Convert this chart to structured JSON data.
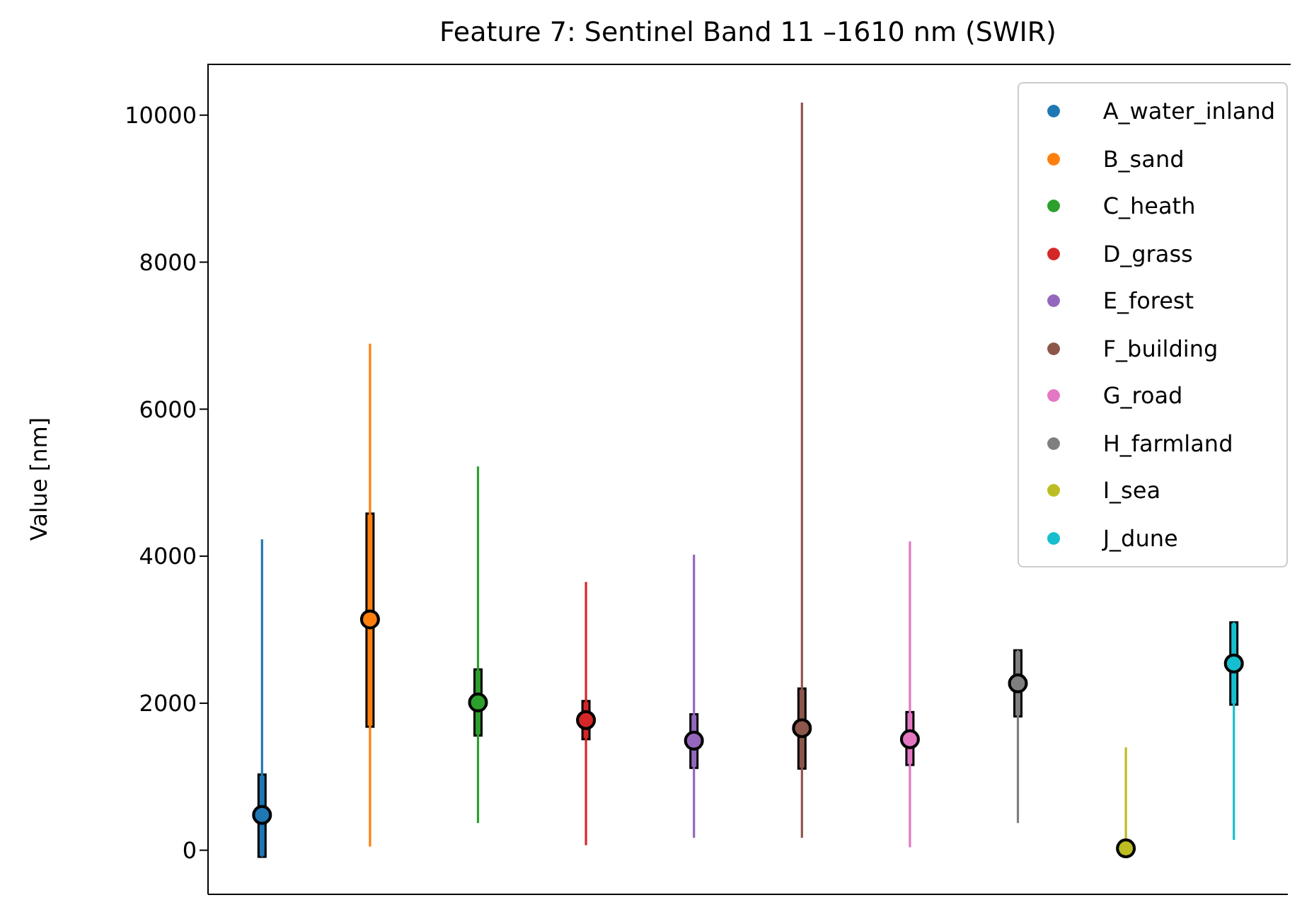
{
  "chart_data": {
    "type": "box",
    "title": "Feature 7: Sentinel Band 11 –1610 nm (SWIR)",
    "ylabel": "Value [nm]",
    "categories": [
      null,
      null,
      null,
      null,
      null,
      null,
      null,
      null,
      null,
      null
    ],
    "ylim": [
      -600,
      10700
    ],
    "yticks": [
      0,
      2000,
      4000,
      6000,
      8000,
      10000
    ],
    "grid": false,
    "legend": "top right",
    "tick_labels": "y",
    "marker": "circle",
    "series": [
      {
        "name": "A_water_inland",
        "color": "#1f77b4",
        "boxes": [
          {
            "low": -90,
            "q1": -90,
            "median": 480,
            "q3": 1030,
            "high": 4230
          },
          null,
          null,
          null,
          null,
          null,
          null,
          null,
          null,
          null
        ]
      },
      {
        "name": "B_sand",
        "color": "#ff7f0e",
        "boxes": [
          null,
          {
            "low": 50,
            "q1": 1680,
            "median": 3140,
            "q3": 4580,
            "high": 6890
          },
          null,
          null,
          null,
          null,
          null,
          null,
          null,
          null
        ]
      },
      {
        "name": "C_heath",
        "color": "#2ca02c",
        "boxes": [
          null,
          null,
          {
            "low": 370,
            "q1": 1560,
            "median": 2010,
            "q3": 2460,
            "high": 5220
          },
          null,
          null,
          null,
          null,
          null,
          null,
          null
        ]
      },
      {
        "name": "D_grass",
        "color": "#d62728",
        "boxes": [
          null,
          null,
          null,
          {
            "low": 70,
            "q1": 1510,
            "median": 1770,
            "q3": 2030,
            "high": 3650
          },
          null,
          null,
          null,
          null,
          null,
          null
        ]
      },
      {
        "name": "E_forest",
        "color": "#9467bd",
        "boxes": [
          null,
          null,
          null,
          null,
          {
            "low": 170,
            "q1": 1120,
            "median": 1490,
            "q3": 1850,
            "high": 4020
          },
          null,
          null,
          null,
          null,
          null
        ]
      },
      {
        "name": "F_building",
        "color": "#8c564b",
        "boxes": [
          null,
          null,
          null,
          null,
          null,
          {
            "low": 170,
            "q1": 1110,
            "median": 1660,
            "q3": 2200,
            "high": 10170
          },
          null,
          null,
          null,
          null
        ]
      },
      {
        "name": "G_road",
        "color": "#e377c2",
        "boxes": [
          null,
          null,
          null,
          null,
          null,
          null,
          {
            "low": 40,
            "q1": 1160,
            "median": 1510,
            "q3": 1880,
            "high": 4200
          },
          null,
          null,
          null
        ]
      },
      {
        "name": "H_farmland",
        "color": "#7f7f7f",
        "boxes": [
          null,
          null,
          null,
          null,
          null,
          null,
          null,
          {
            "low": 370,
            "q1": 1820,
            "median": 2270,
            "q3": 2720,
            "high": null
          },
          null,
          null
        ]
      },
      {
        "name": "I_sea",
        "color": "#bcbd22",
        "boxes": [
          null,
          null,
          null,
          null,
          null,
          null,
          null,
          null,
          {
            "low": -60,
            "q1": -60,
            "median": 25,
            "q3": 110,
            "high": 1400
          },
          null
        ]
      },
      {
        "name": "J_dune",
        "color": "#17becf",
        "boxes": [
          null,
          null,
          null,
          null,
          null,
          null,
          null,
          null,
          null,
          {
            "low": 140,
            "q1": 1980,
            "median": 2540,
            "q3": 3100,
            "high": null
          }
        ]
      }
    ]
  }
}
